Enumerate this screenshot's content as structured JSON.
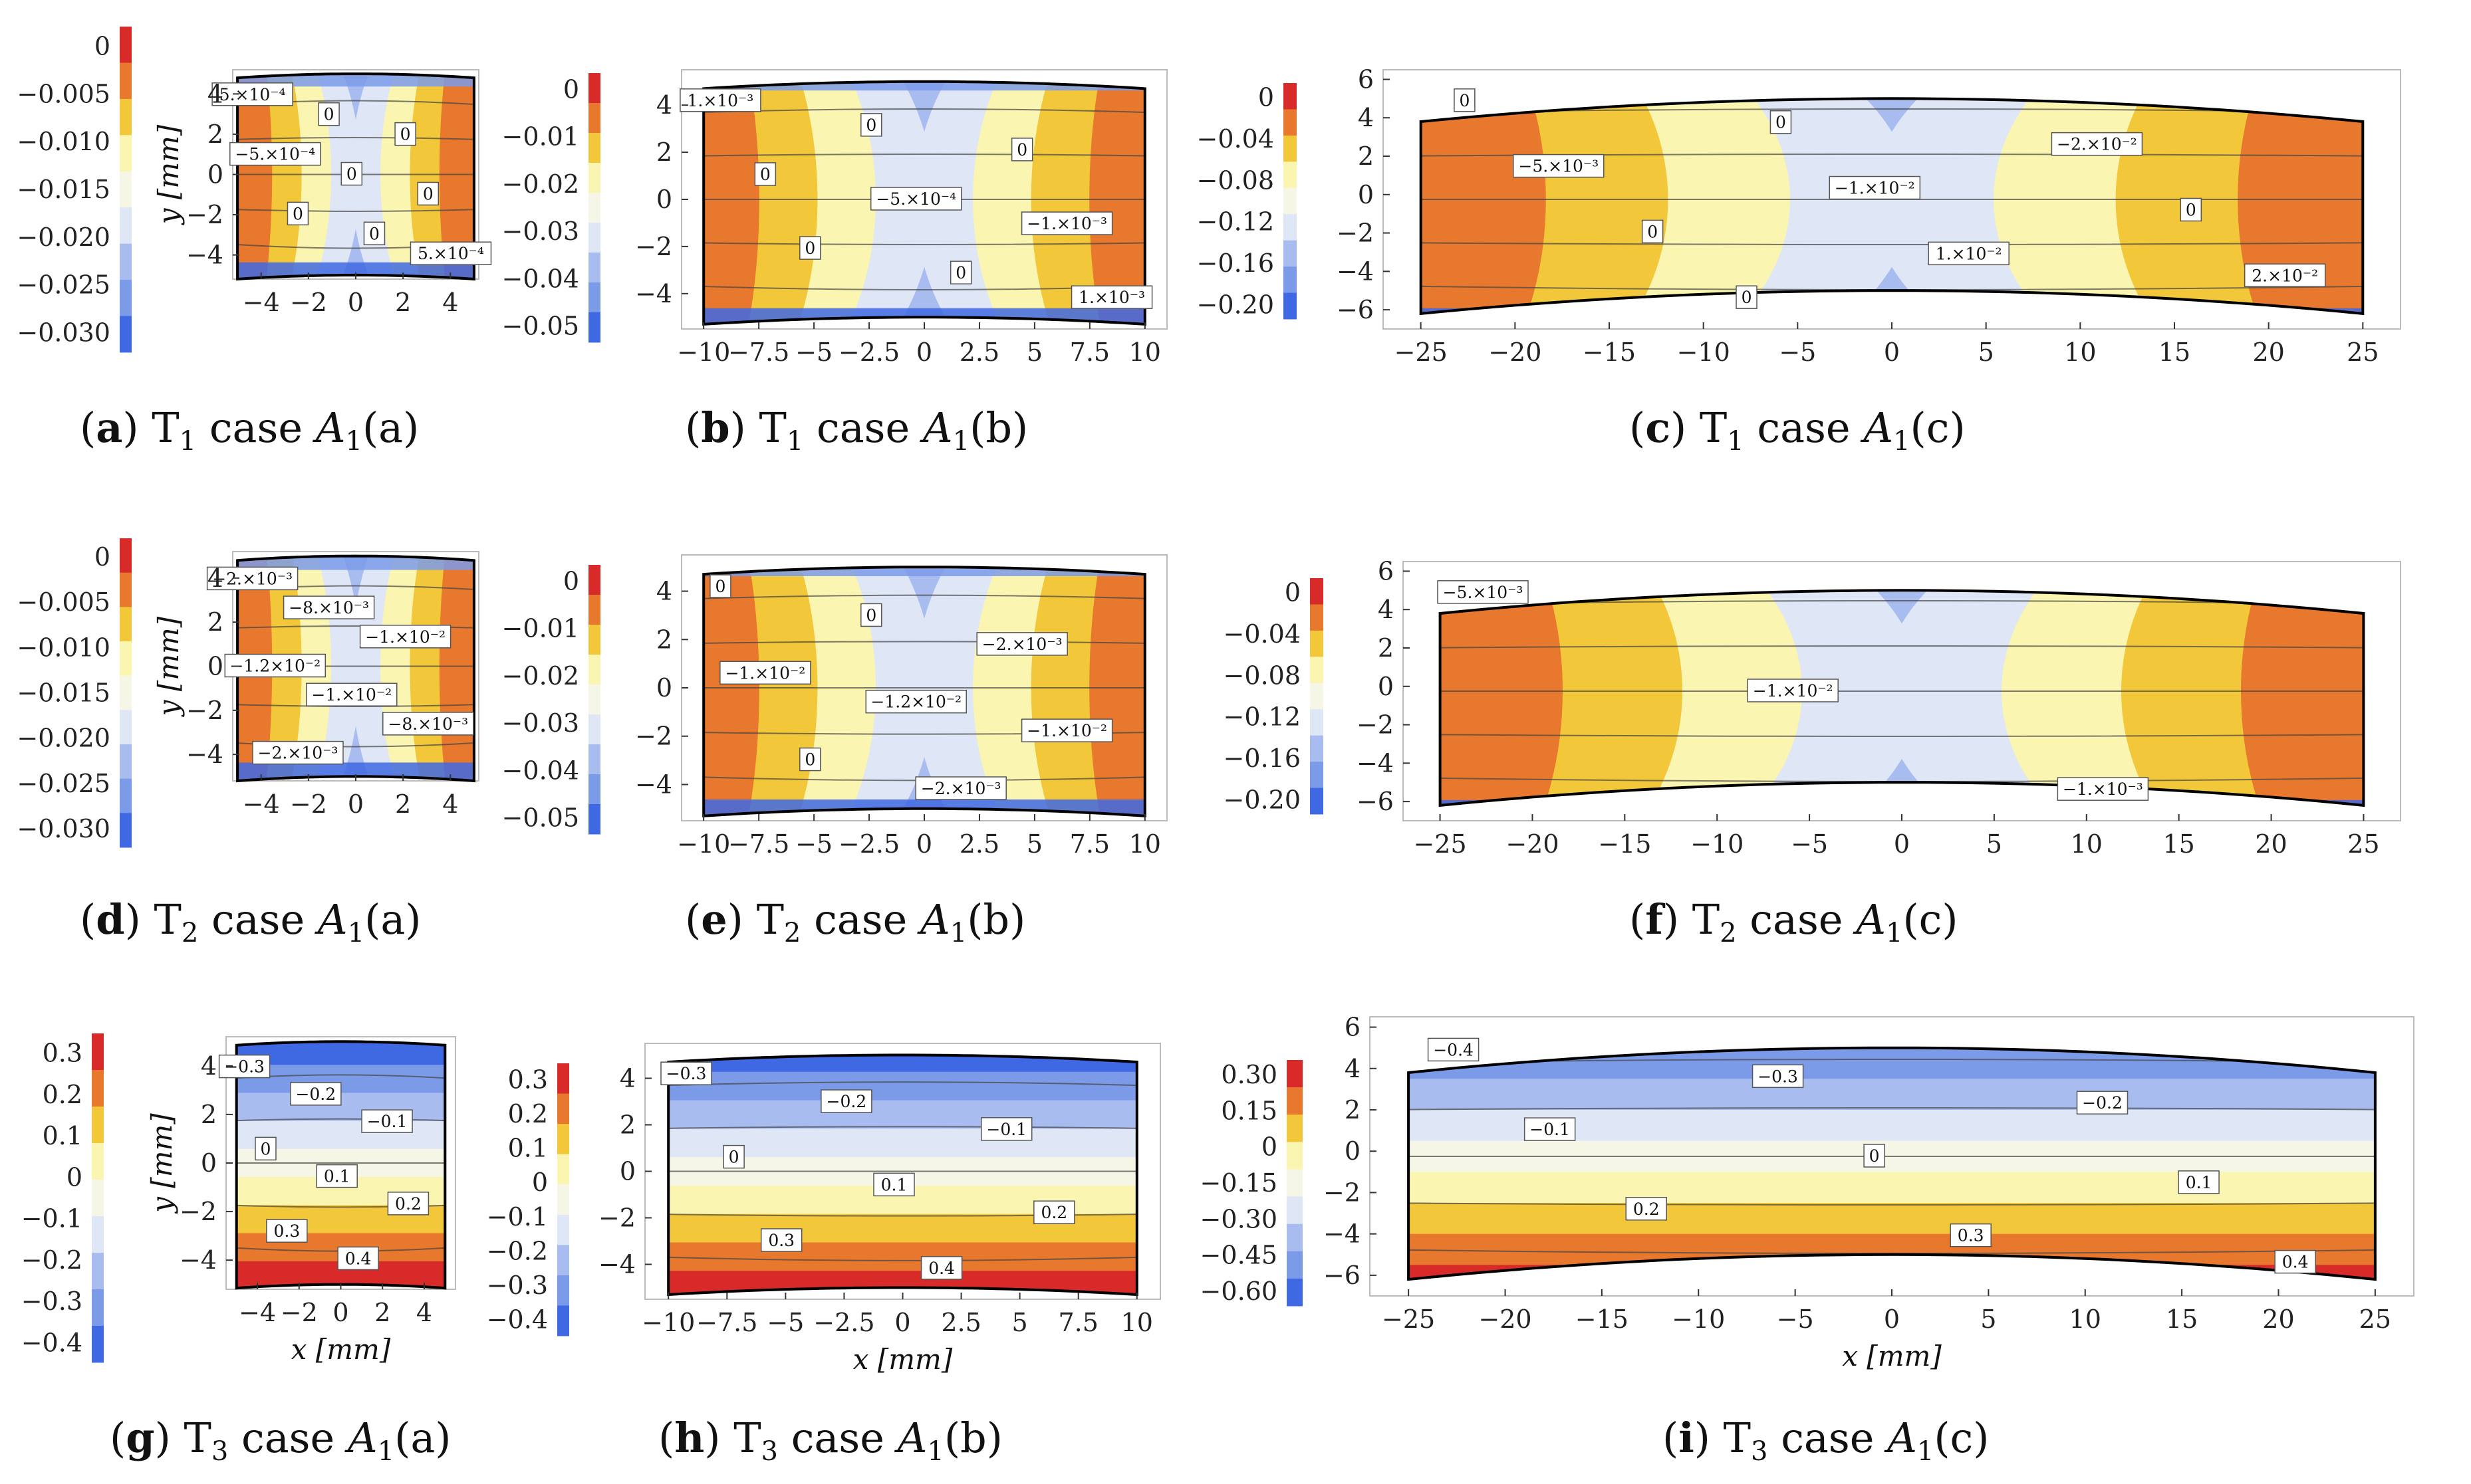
{
  "palette": {
    "red": "#d92a2a",
    "orange": "#e8782e",
    "gold": "#f3c73a",
    "pale_yellow": "#faf5b0",
    "cream": "#f6f6e6",
    "pale_blue": "#dfe6f6",
    "mid_blue": "#a8bcef",
    "blue": "#7b9be9",
    "deep_blue": "#3f69e3"
  },
  "chart_data": [
    {
      "id": "a",
      "type": "contour",
      "caption": {
        "letter": "a",
        "stress": "T",
        "sub": "1",
        "case_text": " case ",
        "var": "A",
        "var_sub": "1",
        "suffix": "(a)"
      },
      "xlim": [
        -5.2,
        5.2
      ],
      "ylim": [
        -5.2,
        5.2
      ],
      "half_width": 5,
      "half_height": 5,
      "curvature": 0.2,
      "xticks": [
        "−4",
        "−2",
        "0",
        "2",
        "4"
      ],
      "xtick_values": [
        -4,
        -2,
        0,
        2,
        4
      ],
      "yticks": [
        "4",
        "2",
        "0",
        "−2",
        "−4"
      ],
      "ytick_values": [
        4,
        2,
        0,
        -2,
        -4
      ],
      "xlabel": "",
      "ylabel": "y [mm]",
      "colorbar_ticks": [
        "0",
        "−0.005",
        "−0.010",
        "−0.015",
        "−0.020",
        "−0.025",
        "−0.030"
      ],
      "colorbar_colors": [
        "red",
        "orange",
        "gold",
        "pale_yellow",
        "cream",
        "pale_blue",
        "mid_blue",
        "blue",
        "deep_blue"
      ],
      "pattern": "side_lobes",
      "contour_labels": [
        "5.×10⁻⁴",
        "0",
        "0",
        "−5.×10⁻⁴",
        "0",
        "0",
        "0",
        "0",
        "5.×10⁻⁴"
      ]
    },
    {
      "id": "b",
      "type": "contour",
      "caption": {
        "letter": "b",
        "stress": "T",
        "sub": "1",
        "case_text": " case ",
        "var": "A",
        "var_sub": "1",
        "suffix": "(b)"
      },
      "xlim": [
        -11,
        11
      ],
      "ylim": [
        -5.5,
        5.5
      ],
      "half_width": 10,
      "half_height": 5,
      "curvature": 0.3,
      "xticks": [
        "−10",
        "−7.5",
        "−5",
        "−2.5",
        "0",
        "2.5",
        "5",
        "7.5",
        "10"
      ],
      "xtick_values": [
        -10,
        -7.5,
        -5,
        -2.5,
        0,
        2.5,
        5,
        7.5,
        10
      ],
      "yticks": [
        "4",
        "2",
        "0",
        "−2",
        "−4"
      ],
      "ytick_values": [
        4,
        2,
        0,
        -2,
        -4
      ],
      "xlabel": "",
      "ylabel": "",
      "colorbar_ticks": [
        "0",
        "−0.01",
        "−0.02",
        "−0.03",
        "−0.04",
        "−0.05"
      ],
      "colorbar_colors": [
        "red",
        "orange",
        "gold",
        "pale_yellow",
        "cream",
        "pale_blue",
        "mid_blue",
        "blue",
        "deep_blue"
      ],
      "pattern": "side_lobes",
      "contour_labels": [
        "1.×10⁻³",
        "0",
        "0",
        "0",
        "−5.×10⁻⁴",
        "−1.×10⁻³",
        "0",
        "0",
        "1.×10⁻³"
      ]
    },
    {
      "id": "c",
      "type": "contour",
      "caption": {
        "letter": "c",
        "stress": "T",
        "sub": "1",
        "case_text": " case ",
        "var": "A",
        "var_sub": "1",
        "suffix": "(c)"
      },
      "xlim": [
        -27,
        27
      ],
      "ylim": [
        -7,
        6.5
      ],
      "half_width": 25,
      "half_height": 5,
      "curvature": 1.2,
      "xticks": [
        "−25",
        "−20",
        "−15",
        "−10",
        "−5",
        "0",
        "5",
        "10",
        "15",
        "20",
        "25"
      ],
      "xtick_values": [
        -25,
        -20,
        -15,
        -10,
        -5,
        0,
        5,
        10,
        15,
        20,
        25
      ],
      "yticks": [
        "6",
        "4",
        "2",
        "0",
        "−2",
        "−4",
        "−6"
      ],
      "ytick_values": [
        6,
        4,
        2,
        0,
        -2,
        -4,
        -6
      ],
      "xlabel": "",
      "ylabel": "",
      "colorbar_ticks": [
        "0",
        "−0.04",
        "−0.08",
        "−0.12",
        "−0.16",
        "−0.20"
      ],
      "colorbar_colors": [
        "red",
        "orange",
        "gold",
        "pale_yellow",
        "cream",
        "pale_blue",
        "mid_blue",
        "blue",
        "deep_blue"
      ],
      "pattern": "side_lobes",
      "contour_labels": [
        "0",
        "0",
        "−2.×10⁻²",
        "−5.×10⁻³",
        "−1.×10⁻²",
        "0",
        "0",
        "1.×10⁻²",
        "2.×10⁻²",
        "0"
      ]
    },
    {
      "id": "d",
      "type": "contour",
      "caption": {
        "letter": "d",
        "stress": "T",
        "sub": "2",
        "case_text": " case ",
        "var": "A",
        "var_sub": "1",
        "suffix": "(a)"
      },
      "xlim": [
        -5.2,
        5.2
      ],
      "ylim": [
        -5.2,
        5.2
      ],
      "half_width": 5,
      "half_height": 5,
      "curvature": 0.2,
      "xticks": [
        "−4",
        "−2",
        "0",
        "2",
        "4"
      ],
      "xtick_values": [
        -4,
        -2,
        0,
        2,
        4
      ],
      "yticks": [
        "4",
        "2",
        "0",
        "−2",
        "−4"
      ],
      "ytick_values": [
        4,
        2,
        0,
        -2,
        -4
      ],
      "xlabel": "",
      "ylabel": "y [mm]",
      "colorbar_ticks": [
        "0",
        "−0.005",
        "−0.010",
        "−0.015",
        "−0.020",
        "−0.025",
        "−0.030"
      ],
      "colorbar_colors": [
        "red",
        "orange",
        "gold",
        "pale_yellow",
        "cream",
        "pale_blue",
        "mid_blue",
        "blue",
        "deep_blue"
      ],
      "pattern": "side_lobes",
      "contour_labels": [
        "−2.×10⁻³",
        "−8.×10⁻³",
        "−1.×10⁻²",
        "−1.2×10⁻²",
        "−1.×10⁻²",
        "−8.×10⁻³",
        "−2.×10⁻³"
      ]
    },
    {
      "id": "e",
      "type": "contour",
      "caption": {
        "letter": "e",
        "stress": "T",
        "sub": "2",
        "case_text": " case ",
        "var": "A",
        "var_sub": "1",
        "suffix": "(b)"
      },
      "xlim": [
        -11,
        11
      ],
      "ylim": [
        -5.5,
        5.5
      ],
      "half_width": 10,
      "half_height": 5,
      "curvature": 0.3,
      "xticks": [
        "−10",
        "−7.5",
        "−5",
        "−2.5",
        "0",
        "2.5",
        "5",
        "7.5",
        "10"
      ],
      "xtick_values": [
        -10,
        -7.5,
        -5,
        -2.5,
        0,
        2.5,
        5,
        7.5,
        10
      ],
      "yticks": [
        "4",
        "2",
        "0",
        "−2",
        "−4"
      ],
      "ytick_values": [
        4,
        2,
        0,
        -2,
        -4
      ],
      "xlabel": "",
      "ylabel": "",
      "colorbar_ticks": [
        "0",
        "−0.01",
        "−0.02",
        "−0.03",
        "−0.04",
        "−0.05"
      ],
      "colorbar_colors": [
        "red",
        "orange",
        "gold",
        "pale_yellow",
        "cream",
        "pale_blue",
        "mid_blue",
        "blue",
        "deep_blue"
      ],
      "pattern": "side_lobes",
      "contour_labels": [
        "0",
        "0",
        "−2.×10⁻³",
        "−1.×10⁻²",
        "−1.2×10⁻²",
        "−1.×10⁻²",
        "0",
        "−2.×10⁻³"
      ]
    },
    {
      "id": "f",
      "type": "contour",
      "caption": {
        "letter": "f",
        "stress": "T",
        "sub": "2",
        "case_text": " case ",
        "var": "A",
        "var_sub": "1",
        "suffix": "(c)"
      },
      "xlim": [
        -27,
        27
      ],
      "ylim": [
        -7,
        6.5
      ],
      "half_width": 25,
      "half_height": 5,
      "curvature": 1.2,
      "xticks": [
        "−25",
        "−20",
        "−15",
        "−10",
        "−5",
        "0",
        "5",
        "10",
        "15",
        "20",
        "25"
      ],
      "xtick_values": [
        -25,
        -20,
        -15,
        -10,
        -5,
        0,
        5,
        10,
        15,
        20,
        25
      ],
      "yticks": [
        "6",
        "4",
        "2",
        "0",
        "−2",
        "−4",
        "−6"
      ],
      "ytick_values": [
        6,
        4,
        2,
        0,
        -2,
        -4,
        -6
      ],
      "xlabel": "",
      "ylabel": "",
      "colorbar_ticks": [
        "0",
        "−0.04",
        "−0.08",
        "−0.12",
        "−0.16",
        "−0.20"
      ],
      "colorbar_colors": [
        "red",
        "orange",
        "gold",
        "pale_yellow",
        "cream",
        "pale_blue",
        "mid_blue",
        "blue",
        "deep_blue"
      ],
      "pattern": "side_lobes",
      "contour_labels": [
        "−5.×10⁻³",
        "−1.×10⁻²",
        "−1.×10⁻³"
      ]
    },
    {
      "id": "g",
      "type": "contour",
      "caption": {
        "letter": "g",
        "stress": "T",
        "sub": "3",
        "case_text": " case ",
        "var": "A",
        "var_sub": "1",
        "suffix": "(a)"
      },
      "xlim": [
        -5.5,
        5.5
      ],
      "ylim": [
        -5.2,
        5.2
      ],
      "half_width": 5,
      "half_height": 5,
      "curvature": 0.15,
      "xticks": [
        "−4",
        "−2",
        "0",
        "2",
        "4"
      ],
      "xtick_values": [
        -4,
        -2,
        0,
        2,
        4
      ],
      "yticks": [
        "4",
        "2",
        "0",
        "−2",
        "−4"
      ],
      "ytick_values": [
        4,
        2,
        0,
        -2,
        -4
      ],
      "xlabel": "x [mm]",
      "ylabel": "y [mm]",
      "colorbar_ticks": [
        "0.3",
        "0.2",
        "0.1",
        "0",
        "−0.1",
        "−0.2",
        "−0.3",
        "−0.4"
      ],
      "colorbar_colors": [
        "red",
        "orange",
        "gold",
        "pale_yellow",
        "cream",
        "pale_blue",
        "mid_blue",
        "blue",
        "deep_blue"
      ],
      "pattern": "horizontal_bands",
      "contour_labels": [
        "−0.3",
        "−0.2",
        "−0.1",
        "0",
        "0.1",
        "0.2",
        "0.3",
        "0.4"
      ]
    },
    {
      "id": "h",
      "type": "contour",
      "caption": {
        "letter": "h",
        "stress": "T",
        "sub": "3",
        "case_text": " case ",
        "var": "A",
        "var_sub": "1",
        "suffix": "(b)"
      },
      "xlim": [
        -11,
        11
      ],
      "ylim": [
        -5.5,
        5.5
      ],
      "half_width": 10,
      "half_height": 5,
      "curvature": 0.3,
      "xticks": [
        "−10",
        "−7.5",
        "−5",
        "−2.5",
        "0",
        "2.5",
        "5",
        "7.5",
        "10"
      ],
      "xtick_values": [
        -10,
        -7.5,
        -5,
        -2.5,
        0,
        2.5,
        5,
        7.5,
        10
      ],
      "yticks": [
        "4",
        "2",
        "0",
        "−2",
        "−4"
      ],
      "ytick_values": [
        4,
        2,
        0,
        -2,
        -4
      ],
      "xlabel": "x [mm]",
      "ylabel": "",
      "colorbar_ticks": [
        "0.3",
        "0.2",
        "0.1",
        "0",
        "−0.1",
        "−0.2",
        "−0.3",
        "−0.4"
      ],
      "colorbar_colors": [
        "red",
        "orange",
        "gold",
        "pale_yellow",
        "cream",
        "pale_blue",
        "mid_blue",
        "blue",
        "deep_blue"
      ],
      "pattern": "horizontal_bands",
      "contour_labels": [
        "−0.3",
        "−0.2",
        "−0.1",
        "0",
        "0.1",
        "0.2",
        "0.3",
        "0.4"
      ]
    },
    {
      "id": "i",
      "type": "contour",
      "caption": {
        "letter": "i",
        "stress": "T",
        "sub": "3",
        "case_text": " case ",
        "var": "A",
        "var_sub": "1",
        "suffix": "(c)"
      },
      "xlim": [
        -27,
        27
      ],
      "ylim": [
        -7,
        6.5
      ],
      "half_width": 25,
      "half_height": 5,
      "curvature": 1.2,
      "xticks": [
        "−25",
        "−20",
        "−15",
        "−10",
        "−5",
        "0",
        "5",
        "10",
        "15",
        "20",
        "25"
      ],
      "xtick_values": [
        -25,
        -20,
        -15,
        -10,
        -5,
        0,
        5,
        10,
        15,
        20,
        25
      ],
      "yticks": [
        "6",
        "4",
        "2",
        "0",
        "−2",
        "−4",
        "−6"
      ],
      "ytick_values": [
        6,
        4,
        2,
        0,
        -2,
        -4,
        -6
      ],
      "xlabel": "x [mm]",
      "ylabel": "",
      "colorbar_ticks": [
        "0.30",
        "0.15",
        "0",
        "−0.15",
        "−0.30",
        "−0.45",
        "−0.60"
      ],
      "colorbar_colors": [
        "red",
        "orange",
        "gold",
        "pale_yellow",
        "cream",
        "pale_blue",
        "mid_blue",
        "blue",
        "deep_blue"
      ],
      "pattern": "horizontal_bands",
      "contour_labels": [
        "−0.4",
        "−0.3",
        "−0.2",
        "−0.1",
        "0",
        "0.1",
        "0.2",
        "0.3",
        "0.4"
      ]
    }
  ]
}
